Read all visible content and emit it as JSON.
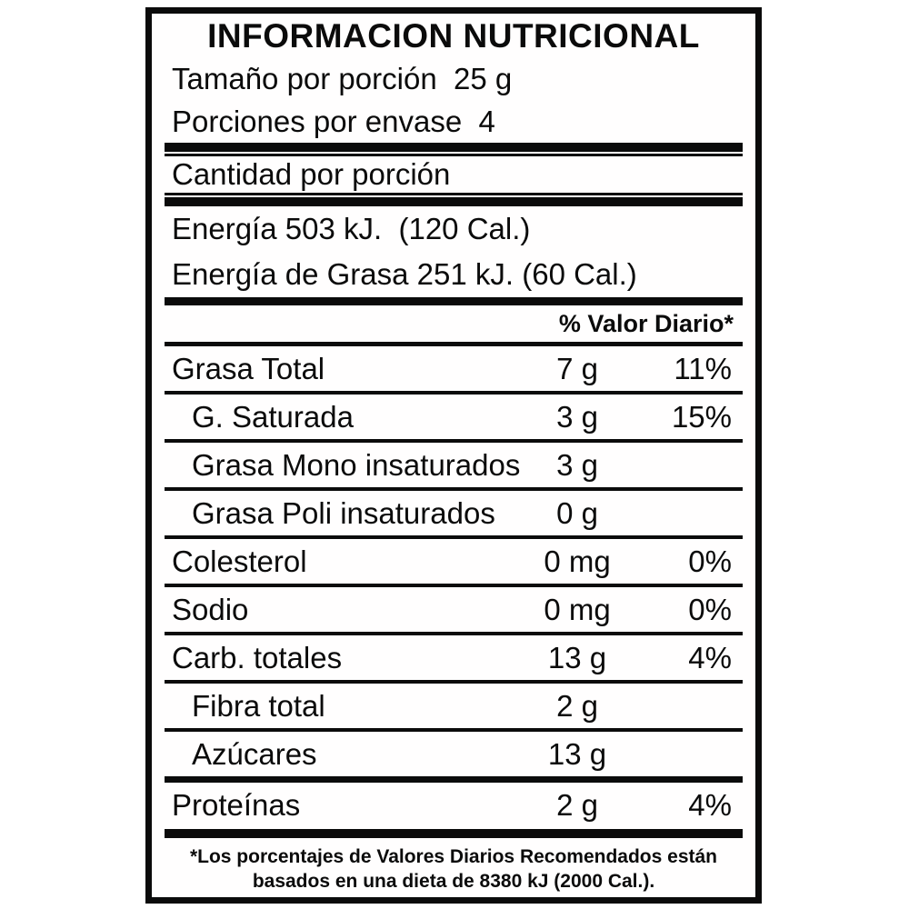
{
  "label": {
    "title": "INFORMACION NUTRICIONAL",
    "serving": {
      "size_line": "Tamaño por porción  25 g",
      "count_line": "Porciones por envase  4"
    },
    "amount_per_serving_heading": "Cantidad por porción",
    "energy": {
      "total_line": "Energía 503 kJ.  (120 Cal.)",
      "fat_line": "Energía de Grasa 251 kJ. (60 Cal.)"
    },
    "daily_value_header": "% Valor Diario*",
    "rows": [
      {
        "name": "Grasa Total",
        "amount": "7 g",
        "dv": "11%"
      },
      {
        "name": "G. Saturada",
        "amount": "3 g",
        "dv": "15%"
      },
      {
        "name": "Grasa Mono insaturados",
        "amount": "3 g",
        "dv": ""
      },
      {
        "name": "Grasa Poli insaturados",
        "amount": "0 g",
        "dv": ""
      },
      {
        "name": "Colesterol",
        "amount": "0 mg",
        "dv": "0%"
      },
      {
        "name": "Sodio",
        "amount": "0 mg",
        "dv": "0%"
      },
      {
        "name": "Carb. totales",
        "amount": "13 g",
        "dv": "4%"
      },
      {
        "name": "Fibra total",
        "amount": "2 g",
        "dv": ""
      },
      {
        "name": "Azúcares",
        "amount": "13 g",
        "dv": ""
      },
      {
        "name": "Proteínas",
        "amount": "2 g",
        "dv": "4%"
      }
    ],
    "footnote": {
      "line1": "*Los porcentajes de Valores Diarios Recomendados están",
      "line2": "basados en una dieta de 8380 kJ (2000 Cal.)."
    },
    "colors": {
      "ink": "#0b0b0b",
      "paper": "#ffffff"
    }
  }
}
